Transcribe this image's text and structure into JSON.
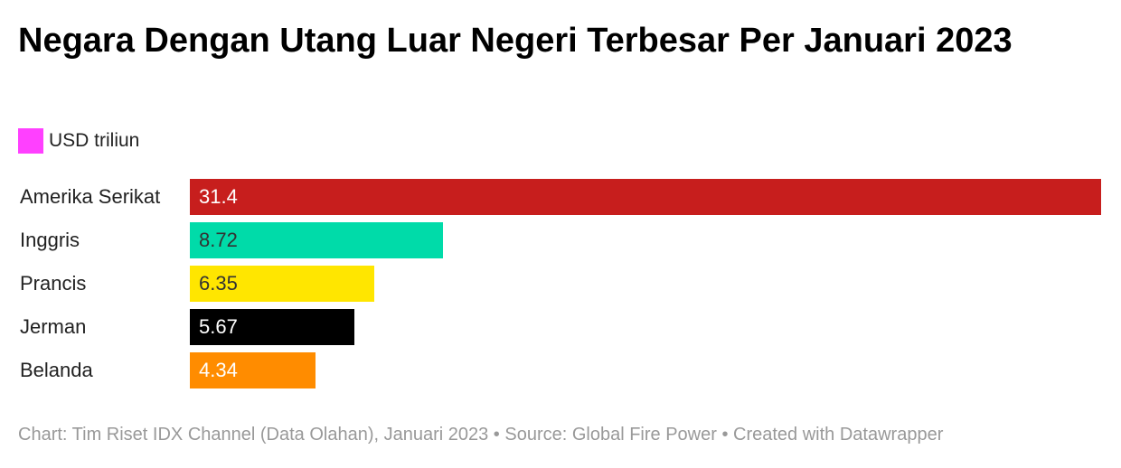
{
  "chart_data": {
    "type": "bar",
    "orientation": "horizontal",
    "title": "Negara Dengan Utang Luar Negeri Terbesar Per Januari 2023",
    "legend": {
      "label": "USD triliun",
      "color": "#ff40ff",
      "placement": "top-left"
    },
    "categories": [
      "Amerika Serikat",
      "Inggris",
      "Prancis",
      "Jerman",
      "Belanda"
    ],
    "values": [
      31.4,
      8.72,
      6.35,
      5.67,
      4.34
    ],
    "value_labels": [
      "31.4",
      "8.72",
      "6.35",
      "5.67",
      "4.34"
    ],
    "bar_colors": [
      "#c71e1d",
      "#00dba9",
      "#ffe600",
      "#000000",
      "#ff8c00"
    ],
    "value_text_colors": [
      "#ffffff",
      "#333333",
      "#333333",
      "#ffffff",
      "#ffffff"
    ],
    "xlim": [
      0,
      31.4
    ],
    "grid": false
  },
  "footer": "Chart: Tim Riset IDX Channel (Data Olahan), Januari 2023 • Source: Global Fire Power • Created with Datawrapper"
}
